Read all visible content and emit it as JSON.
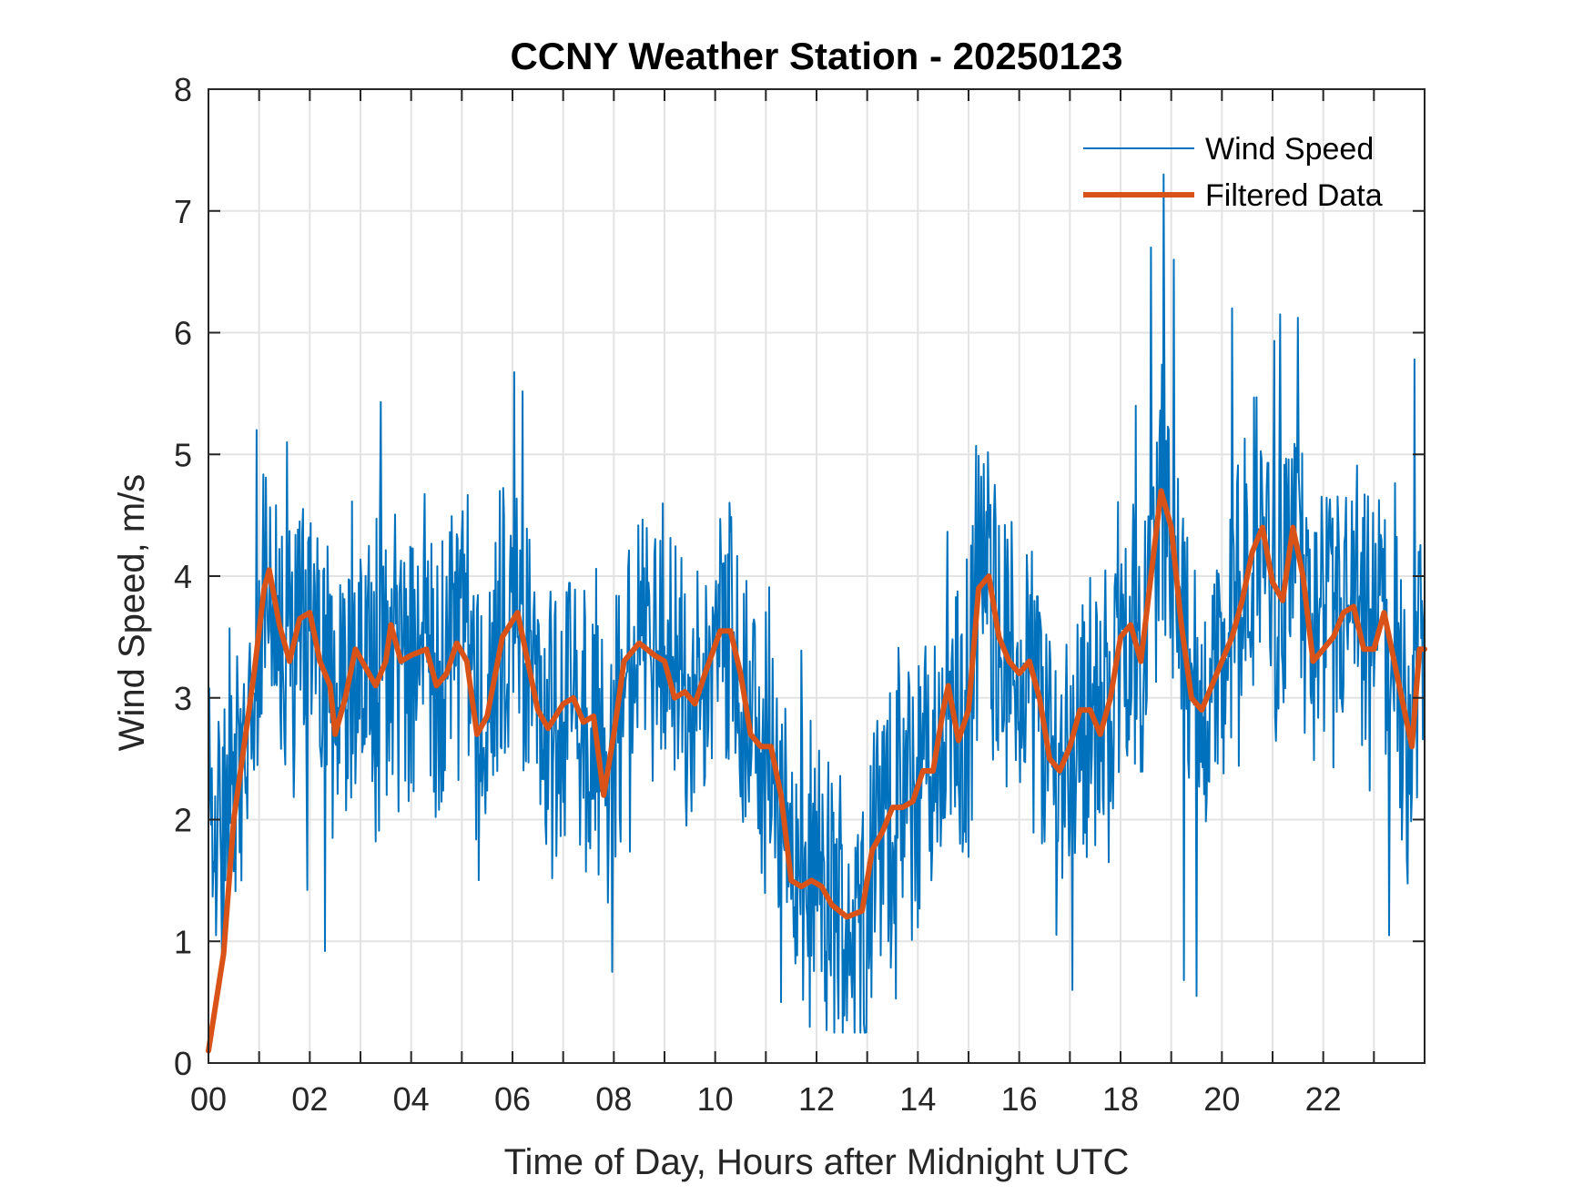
{
  "chart_data": {
    "type": "line",
    "title": "CCNY Weather Station - 20250123",
    "xlabel": "Time of Day, Hours after Midnight UTC",
    "ylabel": "Wind Speed, m/s",
    "xlim": [
      0,
      24
    ],
    "ylim": [
      0,
      8
    ],
    "grid": true,
    "legend_position": "top-right",
    "x_tick_values": [
      0,
      2,
      4,
      6,
      8,
      10,
      12,
      14,
      16,
      18,
      20,
      22
    ],
    "x_tick_labels": [
      "00",
      "02",
      "04",
      "06",
      "08",
      "10",
      "12",
      "14",
      "16",
      "18",
      "20",
      "22"
    ],
    "x_minor_ticks_every_hours": 1,
    "y_tick_values": [
      0,
      1,
      2,
      3,
      4,
      5,
      6,
      7,
      8
    ],
    "y_tick_labels": [
      "0",
      "1",
      "2",
      "3",
      "4",
      "5",
      "6",
      "7",
      "8"
    ],
    "series": [
      {
        "name": "Wind Speed",
        "color": "#0072BD",
        "style": "thin",
        "noise_amplitude": 1.1,
        "notable_peaks": [
          {
            "x": 0.95,
            "y": 5.2
          },
          {
            "x": 1.55,
            "y": 5.1
          },
          {
            "x": 3.4,
            "y": 5.43
          },
          {
            "x": 5.75,
            "y": 4.7
          },
          {
            "x": 10.1,
            "y": 4.47
          },
          {
            "x": 15.15,
            "y": 5.07
          },
          {
            "x": 18.3,
            "y": 5.4
          },
          {
            "x": 18.6,
            "y": 6.7
          },
          {
            "x": 18.85,
            "y": 7.3
          },
          {
            "x": 19.05,
            "y": 6.6
          },
          {
            "x": 20.2,
            "y": 6.2
          },
          {
            "x": 21.15,
            "y": 6.15
          },
          {
            "x": 23.8,
            "y": 5.78
          }
        ],
        "notable_troughs": [
          {
            "x": 0.15,
            "y": 1.05
          },
          {
            "x": 2.3,
            "y": 0.92
          },
          {
            "x": 11.3,
            "y": 0.5
          },
          {
            "x": 12.2,
            "y": 0.27
          },
          {
            "x": 12.6,
            "y": 0.35
          },
          {
            "x": 17.05,
            "y": 0.6
          },
          {
            "x": 19.25,
            "y": 0.68
          },
          {
            "x": 19.5,
            "y": 0.55
          },
          {
            "x": 23.3,
            "y": 1.05
          }
        ]
      },
      {
        "name": "Filtered Data",
        "color": "#D95319",
        "style": "thick",
        "x": [
          0.0,
          0.3,
          0.5,
          0.7,
          0.9,
          1.1,
          1.2,
          1.4,
          1.6,
          1.8,
          2.0,
          2.2,
          2.4,
          2.5,
          2.7,
          2.9,
          3.1,
          3.3,
          3.5,
          3.6,
          3.8,
          4.0,
          4.3,
          4.5,
          4.7,
          4.9,
          5.1,
          5.3,
          5.5,
          5.8,
          6.1,
          6.3,
          6.5,
          6.7,
          7.0,
          7.2,
          7.4,
          7.6,
          7.8,
          8.0,
          8.2,
          8.5,
          8.8,
          9.0,
          9.2,
          9.4,
          9.6,
          9.8,
          10.1,
          10.3,
          10.5,
          10.7,
          10.9,
          11.1,
          11.3,
          11.5,
          11.7,
          11.9,
          12.1,
          12.3,
          12.6,
          12.9,
          13.1,
          13.3,
          13.5,
          13.7,
          13.9,
          14.1,
          14.3,
          14.5,
          14.6,
          14.8,
          15.0,
          15.2,
          15.4,
          15.6,
          15.8,
          16.0,
          16.2,
          16.4,
          16.6,
          16.8,
          17.0,
          17.2,
          17.4,
          17.6,
          17.8,
          18.0,
          18.2,
          18.4,
          18.6,
          18.8,
          19.0,
          19.2,
          19.4,
          19.6,
          19.8,
          20.0,
          20.2,
          20.4,
          20.6,
          20.8,
          21.0,
          21.2,
          21.4,
          21.6,
          21.8,
          22.0,
          22.2,
          22.4,
          22.6,
          22.8,
          23.0,
          23.2,
          23.4,
          23.6,
          23.75,
          23.9,
          24.0
        ],
        "values": [
          0.1,
          0.9,
          2.0,
          2.6,
          3.2,
          3.9,
          4.05,
          3.6,
          3.3,
          3.65,
          3.7,
          3.3,
          3.1,
          2.7,
          3.0,
          3.4,
          3.25,
          3.1,
          3.3,
          3.6,
          3.3,
          3.35,
          3.4,
          3.1,
          3.2,
          3.45,
          3.3,
          2.7,
          2.85,
          3.5,
          3.7,
          3.3,
          2.9,
          2.75,
          2.95,
          3.0,
          2.8,
          2.85,
          2.2,
          2.7,
          3.3,
          3.45,
          3.35,
          3.3,
          3.0,
          3.05,
          2.95,
          3.2,
          3.55,
          3.55,
          3.2,
          2.7,
          2.6,
          2.6,
          2.2,
          1.5,
          1.45,
          1.5,
          1.45,
          1.3,
          1.2,
          1.25,
          1.75,
          1.9,
          2.1,
          2.1,
          2.15,
          2.4,
          2.4,
          2.9,
          3.1,
          2.65,
          2.9,
          3.9,
          4.0,
          3.5,
          3.3,
          3.2,
          3.3,
          3.0,
          2.5,
          2.4,
          2.6,
          2.9,
          2.9,
          2.7,
          3.0,
          3.5,
          3.6,
          3.3,
          4.0,
          4.7,
          4.4,
          3.6,
          3.0,
          2.9,
          3.1,
          3.3,
          3.5,
          3.8,
          4.2,
          4.4,
          3.95,
          3.8,
          4.4,
          4.0,
          3.3,
          3.4,
          3.5,
          3.7,
          3.75,
          3.4,
          3.4,
          3.7,
          3.3,
          2.9,
          2.6,
          3.4,
          3.4
        ]
      }
    ]
  }
}
